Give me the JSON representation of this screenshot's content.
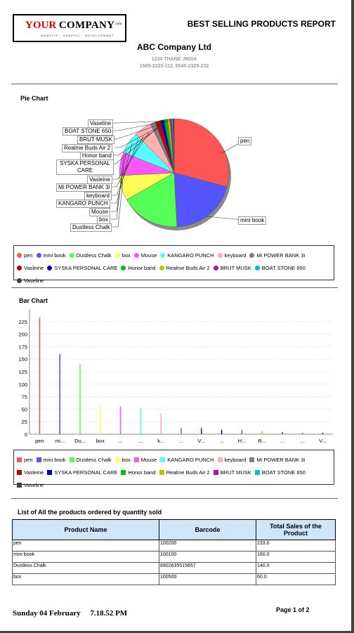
{
  "header": {
    "logo_your": "YOUR",
    "logo_company": "COMPANY",
    "logo_com": ".com",
    "logo_tagline": "WEBSITE · GRAPHIC · DEVELOPMENT",
    "report_title": "BEST SELLING PRODUCTS REPORT",
    "company_name": "ABC Company Ltd",
    "address": "1234 THANE ,INDIA",
    "phones": "1565-2323-112, 6545-2325-232"
  },
  "pie_section": {
    "title": "Pie Chart"
  },
  "bar_section": {
    "title": "Bar Chart"
  },
  "legend": [
    {
      "label": "pen",
      "color": "#ff5555"
    },
    {
      "label": "mini book",
      "color": "#5555ff"
    },
    {
      "label": "Dustless Chalk",
      "color": "#55ff55"
    },
    {
      "label": "box",
      "color": "#ffff55"
    },
    {
      "label": "Mouse",
      "color": "#ff55ff"
    },
    {
      "label": "KANGARO PUNCH",
      "color": "#55ffff"
    },
    {
      "label": "keyboard",
      "color": "#ffafaf"
    },
    {
      "label": "Mi POWER BANK 3i",
      "color": "#808080"
    },
    {
      "label": "Vasleine",
      "color": "#c00000"
    },
    {
      "label": "SYSKA PERSONAL CARE",
      "color": "#0000c0"
    },
    {
      "label": "Honor band",
      "color": "#00c000"
    },
    {
      "label": "Realme Buds Air 2",
      "color": "#c0c000"
    },
    {
      "label": "BRUT MUSK",
      "color": "#c000c0"
    },
    {
      "label": "BOAT STONE 650",
      "color": "#00c0c0"
    },
    {
      "label": "Vaseline",
      "color": "#404040"
    }
  ],
  "pie_labels": {
    "vaseline": "Vaseline",
    "boat": "BOAT STONE 650",
    "brut": "BRUT MUSK",
    "realme": "Realme Buds Air 2",
    "honor": "Honor band",
    "syska": "SYSKA PERSONAL CARE",
    "vasleine": "Vasleine",
    "mipower": "Mi POWER BANK 3i",
    "keyboard": "keyboard",
    "kangaro": "KANGARO PUNCH",
    "mouse": "Mouse",
    "box": "box",
    "chalk": "Dustless Chalk",
    "pen": "pen",
    "minibook": "mini book"
  },
  "chart_data": [
    {
      "type": "pie",
      "title": "Pie Chart",
      "categories": [
        "pen",
        "mini book",
        "Dustless Chalk",
        "box",
        "Mouse",
        "KANGARO PUNCH",
        "keyboard",
        "Mi POWER BANK 3i",
        "Vasleine",
        "SYSKA PERSONAL CARE",
        "Honor band",
        "Realme Buds Air 2",
        "BRUT MUSK",
        "BOAT STONE 650",
        "Vaseline"
      ],
      "values": [
        233,
        160,
        140,
        60,
        55,
        52,
        42,
        12,
        12,
        9,
        8,
        6,
        4,
        3,
        3
      ],
      "legend_position": "bottom"
    },
    {
      "type": "bar",
      "title": "Bar Chart",
      "categories": [
        "pen",
        "mi...",
        "Du...",
        "box",
        "...",
        "...",
        "k...",
        "...",
        "V...",
        "...",
        "H...",
        "R...",
        "...",
        "...",
        "V..."
      ],
      "values": [
        233,
        160,
        140,
        60,
        55,
        52,
        42,
        12,
        12,
        9,
        8,
        6,
        4,
        3,
        3
      ],
      "yticks": [
        "0",
        "25",
        "50",
        "75",
        "100",
        "125",
        "150",
        "175",
        "200",
        "225"
      ],
      "ylim": [
        0,
        250
      ],
      "grid": true,
      "legend_position": "bottom"
    }
  ],
  "table": {
    "title": "List of All the products ordered by quantity sold",
    "columns": [
      "Product Name",
      "Barcode",
      "Total Sales of the Product"
    ],
    "rows": [
      [
        "pen",
        "100200",
        "233.0"
      ],
      [
        "mini book",
        "100100",
        "160.0"
      ],
      [
        "Dustless Chalk",
        "8902635515657",
        "140.0"
      ],
      [
        "box",
        "100500",
        "60.0"
      ]
    ]
  },
  "footer": {
    "date": "Sunday 04 February",
    "time": "7.18.52 PM",
    "page": "Page 1 of 2"
  }
}
